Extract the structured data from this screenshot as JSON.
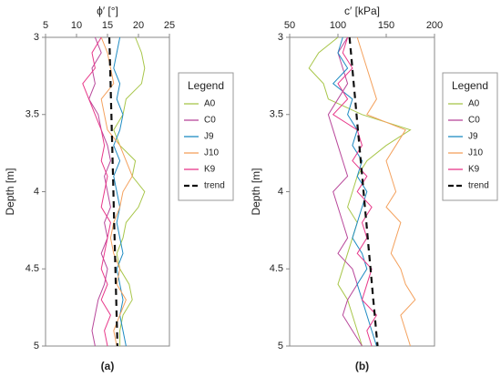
{
  "chart_data": [
    {
      "type": "line",
      "xlabel": "ϕ′ [°]",
      "ylabel": "Depth [m]",
      "caption": "(a)",
      "legend_title": "Legend",
      "xlim": [
        5,
        25
      ],
      "xticks": [
        5,
        10,
        15,
        20,
        25
      ],
      "ylim": [
        3,
        5
      ],
      "yticks": [
        3,
        3.5,
        4,
        4.5,
        5
      ],
      "y_inverted": true,
      "y": [
        3,
        3.1,
        3.2,
        3.3,
        3.4,
        3.5,
        3.6,
        3.7,
        3.8,
        3.9,
        4,
        4.1,
        4.2,
        4.3,
        4.4,
        4.5,
        4.6,
        4.7,
        4.8,
        4.9,
        5
      ],
      "series": [
        {
          "name": "A0",
          "color": "#a8c64a",
          "values": [
            19.5,
            20.5,
            21,
            20.5,
            18,
            17.5,
            16,
            17,
            19.5,
            19,
            21,
            20,
            18,
            17.5,
            16.5,
            17,
            18.5,
            19,
            17.5,
            17,
            17
          ]
        },
        {
          "name": "C0",
          "color": "#b8479a",
          "values": [
            13,
            14,
            12.5,
            13,
            12,
            13.5,
            14,
            15,
            15.5,
            14.5,
            15,
            15.5,
            14.5,
            15,
            14,
            15,
            14.5,
            13.5,
            13,
            12.5,
            13
          ]
        },
        {
          "name": "J9",
          "color": "#1e8bc3",
          "values": [
            17,
            16.5,
            16,
            17,
            16.5,
            17.5,
            17,
            16,
            17,
            16,
            16.5,
            17,
            16.5,
            17,
            17.5,
            16.5,
            17,
            17.5,
            17,
            17.5,
            18
          ]
        },
        {
          "name": "J10",
          "color": "#f4a15d",
          "values": [
            14,
            15,
            15.5,
            16,
            14,
            14.5,
            15,
            17,
            18,
            19,
            17.5,
            17,
            16,
            15.5,
            16,
            17,
            16.5,
            18,
            17,
            16,
            16.5
          ]
        },
        {
          "name": "K9",
          "color": "#e8388a",
          "values": [
            14,
            12.5,
            13,
            11,
            12,
            13,
            14,
            14.5,
            14,
            15,
            14.5,
            14,
            15.5,
            15,
            14.5,
            14,
            15,
            14,
            15.5,
            14.5,
            15
          ]
        },
        {
          "name": "trend",
          "color": "#111111",
          "dashed": true,
          "values": [
            15.3,
            15.37,
            15.43,
            15.5,
            15.56,
            15.63,
            15.69,
            15.76,
            15.82,
            15.89,
            15.95,
            16.02,
            16.08,
            16.15,
            16.21,
            16.28,
            16.34,
            16.41,
            16.47,
            16.54,
            16.6
          ]
        }
      ]
    },
    {
      "type": "line",
      "xlabel": "c′ [kPa]",
      "ylabel": "Depth [m]",
      "caption": "(b)",
      "legend_title": "Legend",
      "xlim": [
        50,
        200
      ],
      "xticks": [
        50,
        100,
        150,
        200
      ],
      "ylim": [
        3,
        5
      ],
      "yticks": [
        3,
        3.5,
        4,
        4.5,
        5
      ],
      "y_inverted": true,
      "y": [
        3,
        3.1,
        3.2,
        3.3,
        3.4,
        3.5,
        3.6,
        3.7,
        3.8,
        3.9,
        4,
        4.1,
        4.2,
        4.3,
        4.4,
        4.5,
        4.6,
        4.7,
        4.8,
        4.9,
        5
      ],
      "series": [
        {
          "name": "A0",
          "color": "#a8c64a",
          "values": [
            100,
            80,
            70,
            85,
            90,
            125,
            175,
            150,
            130,
            120,
            115,
            110,
            120,
            115,
            110,
            105,
            100,
            110,
            115,
            120,
            125
          ]
        },
        {
          "name": "C0",
          "color": "#b8479a",
          "values": [
            110,
            100,
            105,
            110,
            100,
            90,
            95,
            100,
            105,
            110,
            95,
            100,
            105,
            110,
            100,
            115,
            120,
            110,
            105,
            115,
            125
          ]
        },
        {
          "name": "J9",
          "color": "#1e8bc3",
          "values": [
            105,
            100,
            110,
            95,
            115,
            110,
            120,
            115,
            125,
            120,
            130,
            125,
            120,
            115,
            125,
            130,
            120,
            125,
            130,
            135,
            140
          ]
        },
        {
          "name": "J10",
          "color": "#f4a15d",
          "values": [
            120,
            125,
            130,
            135,
            140,
            130,
            170,
            160,
            150,
            155,
            160,
            150,
            165,
            160,
            155,
            165,
            170,
            180,
            165,
            170,
            175
          ]
        },
        {
          "name": "K9",
          "color": "#e8388a",
          "values": [
            110,
            105,
            115,
            100,
            110,
            95,
            120,
            125,
            115,
            130,
            120,
            135,
            125,
            130,
            120,
            135,
            130,
            125,
            140,
            130,
            135
          ]
        },
        {
          "name": "trend",
          "color": "#111111",
          "dashed": true,
          "values": [
            112,
            113.45,
            114.9,
            116.35,
            117.8,
            119.25,
            120.7,
            122.15,
            123.6,
            125.05,
            126.5,
            127.95,
            129.4,
            130.85,
            132.3,
            133.75,
            135.2,
            136.65,
            138.1,
            139.55,
            141
          ]
        }
      ]
    }
  ]
}
